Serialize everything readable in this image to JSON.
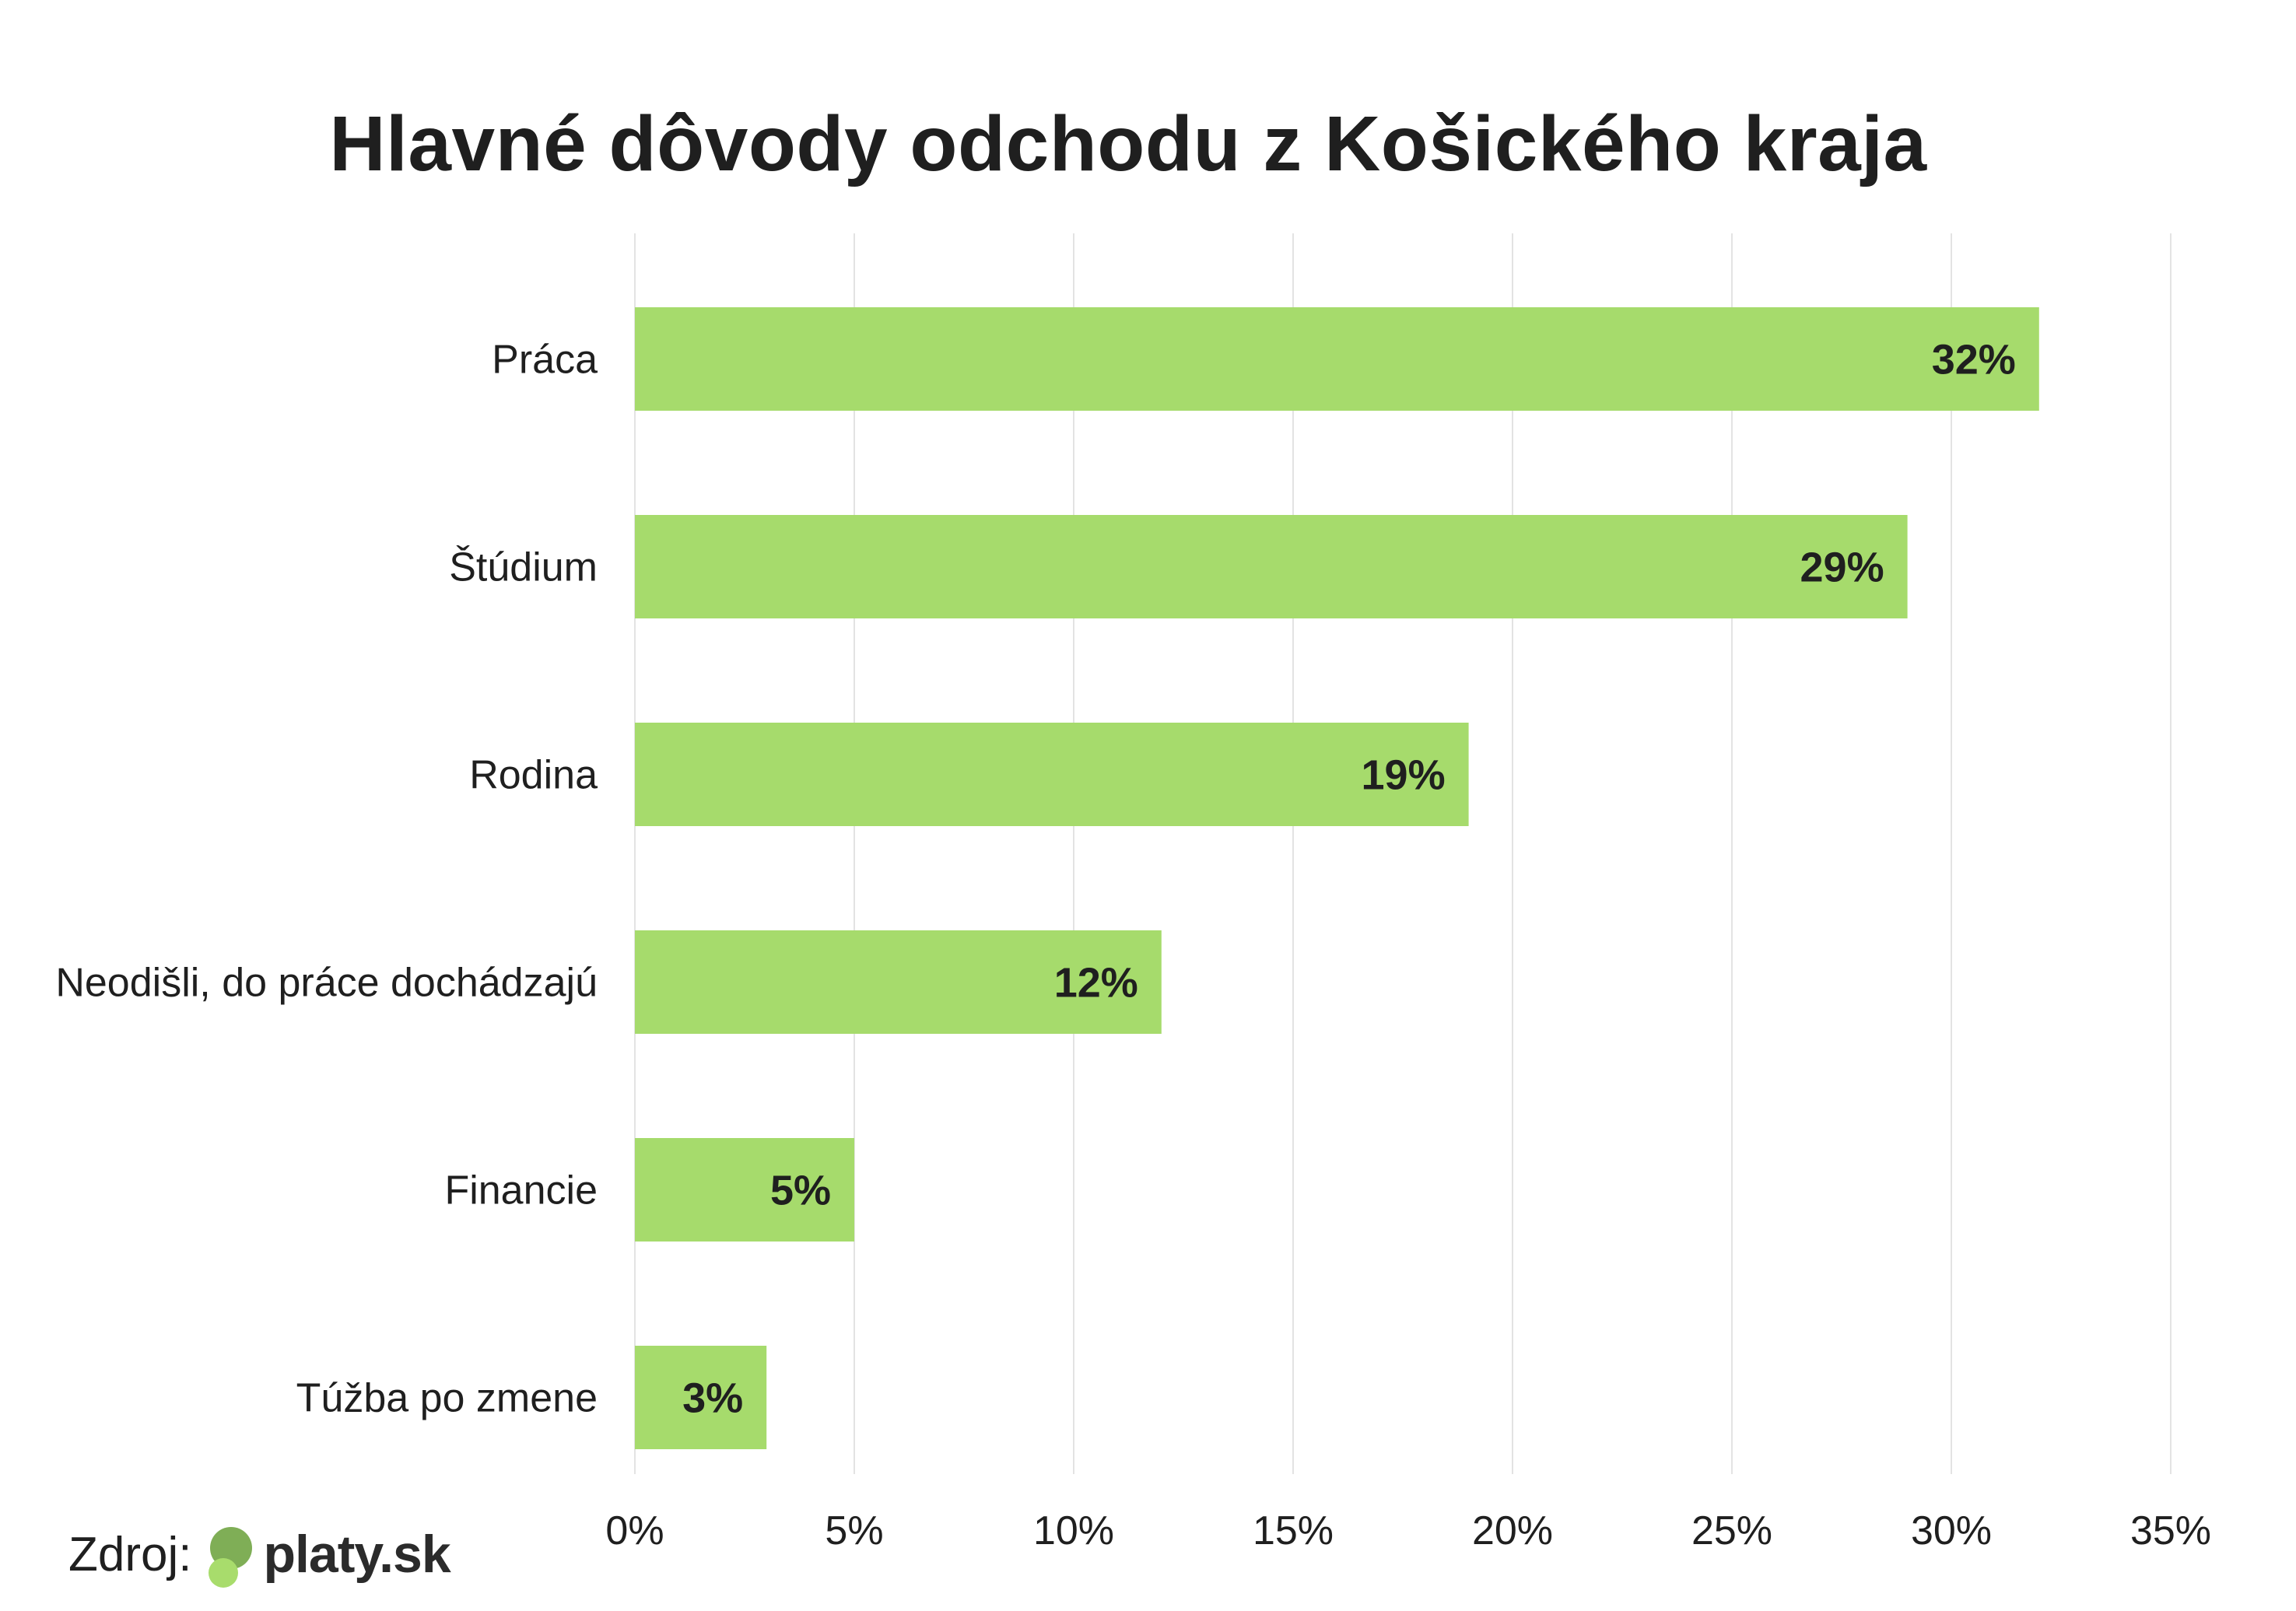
{
  "chart_data": {
    "type": "bar",
    "orientation": "horizontal",
    "title": "Hlavné dôvody odchodu z Košického kraja",
    "categories": [
      "Práca",
      "Štúdium",
      "Rodina",
      "Neodišli, do práce dochádzajú",
      "Financie",
      "Túžba po zmene"
    ],
    "values": [
      32,
      29,
      19,
      12,
      5,
      3
    ],
    "value_labels": [
      "32%",
      "29%",
      "19%",
      "12%",
      "5%",
      "3%"
    ],
    "xlim": [
      0,
      35
    ],
    "x_ticks": [
      0,
      5,
      10,
      15,
      20,
      25,
      30,
      35
    ],
    "x_tick_labels": [
      "0%",
      "5%",
      "10%",
      "15%",
      "20%",
      "25%",
      "30%",
      "35%"
    ],
    "xlabel": "",
    "ylabel": "",
    "grid": "vertical",
    "legend": "none",
    "bar_color": "#a6db6c",
    "grid_color": "#e3e3e3",
    "text_color": "#1f1f1f"
  },
  "source": {
    "label": "Zdroj:",
    "logo_text": "platy.sk",
    "logo_colors": [
      "#7fae56",
      "#a8dc6c"
    ]
  }
}
